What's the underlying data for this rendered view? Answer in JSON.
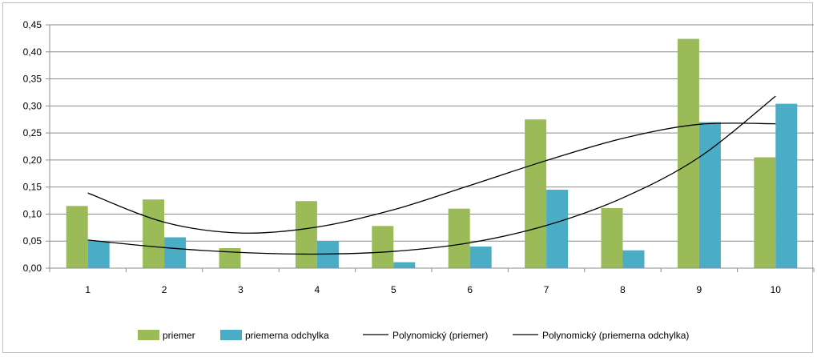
{
  "chart_data": {
    "type": "bar",
    "categories": [
      "1",
      "2",
      "3",
      "4",
      "5",
      "6",
      "7",
      "8",
      "9",
      "10"
    ],
    "series": [
      {
        "name": "priemer",
        "type": "bar",
        "color": "#9BBB59",
        "values": [
          0.115,
          0.127,
          0.037,
          0.124,
          0.078,
          0.11,
          0.275,
          0.111,
          0.424,
          0.205
        ]
      },
      {
        "name": "priemerna odchylka",
        "type": "bar",
        "color": "#4BACC6",
        "values": [
          0.05,
          0.057,
          0.0,
          0.05,
          0.011,
          0.04,
          0.145,
          0.033,
          0.27,
          0.304
        ]
      }
    ],
    "trendlines": [
      {
        "name": "Polynomický (priemer)",
        "type": "line",
        "color": "#000000",
        "polynomial": true,
        "values": [
          0.139,
          0.085,
          0.065,
          0.076,
          0.108,
          0.153,
          0.199,
          0.24,
          0.266,
          0.267
        ]
      },
      {
        "name": "Polynomický (priemerna odchylka)",
        "type": "line",
        "color": "#000000",
        "polynomial": true,
        "values": [
          0.052,
          0.038,
          0.029,
          0.026,
          0.031,
          0.047,
          0.079,
          0.13,
          0.205,
          0.318
        ]
      }
    ],
    "ylim": [
      0,
      0.45
    ],
    "yticks": [
      "0,00",
      "0,05",
      "0,10",
      "0,15",
      "0,20",
      "0,25",
      "0,30",
      "0,35",
      "0,40",
      "0,45"
    ],
    "grid": true,
    "legend": "bottom",
    "title": "",
    "xlabel": "",
    "ylabel": ""
  }
}
